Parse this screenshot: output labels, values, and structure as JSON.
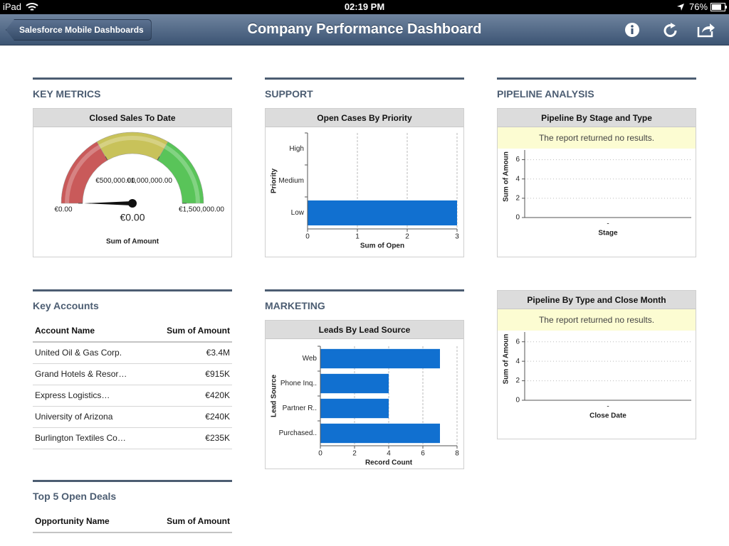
{
  "status_bar": {
    "device": "iPad",
    "time": "02:19 PM",
    "battery": "76%"
  },
  "nav": {
    "back": "Salesforce Mobile Dashboards",
    "title": "Company Performance Dashboard"
  },
  "key_metrics": {
    "heading": "KEY METRICS",
    "chart": {
      "type": "gauge",
      "title": "Closed Sales To Date",
      "ticks": [
        {
          "value": 0,
          "label": "€0.00"
        },
        {
          "value": 500000,
          "label": "€500,000.00"
        },
        {
          "value": 1000000,
          "label": "€1,000,000.00"
        },
        {
          "value": 1500000,
          "label": "€1,500,000.00"
        }
      ],
      "band_colors": [
        "#c95a5a",
        "#c8c25a",
        "#59c459"
      ],
      "value": 0,
      "value_label": "€0.00",
      "footer": "Sum of Amount"
    }
  },
  "support": {
    "heading": "SUPPORT",
    "chart": {
      "type": "bar",
      "title": "Open Cases By Priority",
      "categories": [
        "High",
        "Medium",
        "Low"
      ],
      "values": [
        0,
        0,
        3
      ],
      "color": "#1170d0",
      "xlim": [
        0,
        3
      ],
      "xticks": [
        0,
        1,
        2,
        3
      ],
      "xlabel": "Sum of Open",
      "ylabel": "Priority",
      "grid": true
    }
  },
  "pipeline": {
    "heading": "PIPELINE ANALYSIS",
    "chart": {
      "type": "column",
      "title": "Pipeline By Stage and Type",
      "message": "The report returned no results.",
      "categories": [
        "-"
      ],
      "values": [
        null
      ],
      "color": "#1170d0",
      "ylim": [
        0,
        7
      ],
      "yticks": [
        0,
        2,
        4,
        6
      ],
      "xlabel": "Stage",
      "ylabel": "Sum of Amoun",
      "grid": true
    }
  },
  "key_accounts": {
    "heading": "Key Accounts",
    "columns": [
      "Account Name",
      "Sum of Amount"
    ],
    "rows": [
      [
        "United Oil & Gas Corp.",
        "€3.4M"
      ],
      [
        "Grand Hotels & Resor…",
        "€915K"
      ],
      [
        "Express Logistics…",
        "€420K"
      ],
      [
        "University of Arizona",
        "€240K"
      ],
      [
        "Burlington Textiles Co…",
        "€235K"
      ]
    ]
  },
  "marketing": {
    "heading": "MARKETING",
    "chart": {
      "type": "bar",
      "title": "Leads By Lead Source",
      "categories": [
        "Web",
        "Phone Inq..",
        "Partner R..",
        "Purchased.."
      ],
      "values": [
        7,
        4,
        4,
        7
      ],
      "color": "#1170d0",
      "xlim": [
        0,
        8
      ],
      "xticks": [
        0,
        2,
        4,
        6,
        8
      ],
      "xlabel": "Record Count",
      "ylabel": "Lead Source",
      "grid": true
    }
  },
  "pipeline_close": {
    "chart": {
      "type": "column",
      "title": "Pipeline By Type and Close Month",
      "message": "The report returned no results.",
      "categories": [
        "-"
      ],
      "values": [
        null
      ],
      "color": "#1170d0",
      "ylim": [
        0,
        7
      ],
      "yticks": [
        0,
        2,
        4,
        6
      ],
      "xlabel": "Close Date",
      "ylabel": "Sum of Amoun",
      "grid": true
    }
  },
  "top_deals": {
    "heading": "Top 5 Open Deals",
    "columns": [
      "Opportunity Name",
      "Sum of Amount"
    ]
  }
}
